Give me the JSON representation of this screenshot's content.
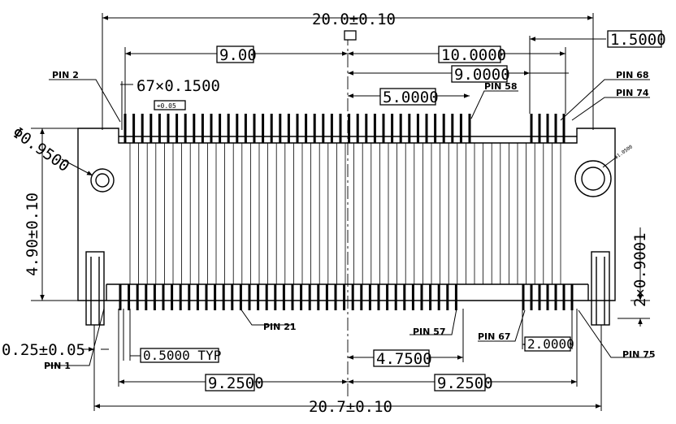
{
  "drawing": {
    "colors": {
      "line": "#000000",
      "background": "#ffffff"
    },
    "dimensions": {
      "overall_top": "20.0±0.10",
      "overall_bottom": "20.7±0.10",
      "span_9_00": "9.00",
      "span_10_0000": "10.0000",
      "span_1_5000": "1.5000",
      "span_9_0000": "9.0000",
      "span_5_0000": "5.0000",
      "pitch_count": "67×0.1500",
      "hole_dia": "Φ0.9500",
      "height": "4.90±0.10",
      "tail_width": "0.25±0.05",
      "pitch_typ": "0.5000 TYP",
      "span_4_7500": "4.7500",
      "span_2_0000": "2.0000",
      "span_9_2500_left": "9.2500",
      "span_9_2500_right": "9.2500",
      "side_pitch": "2×0.9001",
      "tol_symbol": "⌖0.05",
      "hole_small_note": "Φ1.0500"
    },
    "pin_labels": {
      "pin2": "PIN 2",
      "pin68": "PIN 68",
      "pin74": "PIN 74",
      "pin58": "PIN 58",
      "pin21": "PIN 21",
      "pin57": "PIN 57",
      "pin67": "PIN 67",
      "pin1": "PIN 1",
      "pin75": "PIN 75"
    }
  }
}
